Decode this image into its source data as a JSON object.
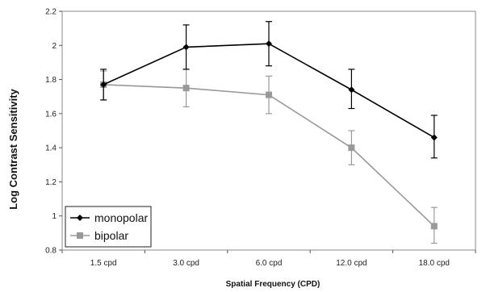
{
  "chart_data": {
    "type": "line",
    "xlabel": "Spatial Frequency (CPD)",
    "ylabel": "Log Contrast Sensitivity",
    "categories": [
      "1.5 cpd",
      "3.0 cpd",
      "6.0 cpd",
      "12.0 cpd",
      "18.0 cpd"
    ],
    "ylim": [
      0.8,
      2.2
    ],
    "yticks": [
      "0.8",
      "1",
      "1.2",
      "1.4",
      "1.6",
      "1.8",
      "2",
      "2.2"
    ],
    "grid": false,
    "legend_position": "bottom-left",
    "series": [
      {
        "name": "monopolar",
        "color": "#000000",
        "marker": "diamond",
        "values": [
          1.77,
          1.99,
          2.01,
          1.74,
          1.46
        ],
        "error_low": [
          1.68,
          1.86,
          1.88,
          1.63,
          1.34
        ],
        "error_high": [
          1.86,
          2.12,
          2.14,
          1.86,
          1.59
        ]
      },
      {
        "name": "bipolar",
        "color": "#999999",
        "marker": "square",
        "values": [
          1.77,
          1.75,
          1.71,
          1.4,
          0.94
        ],
        "error_low": [
          1.68,
          1.64,
          1.6,
          1.3,
          0.84
        ],
        "error_high": [
          1.85,
          1.86,
          1.82,
          1.5,
          1.05
        ]
      }
    ]
  }
}
